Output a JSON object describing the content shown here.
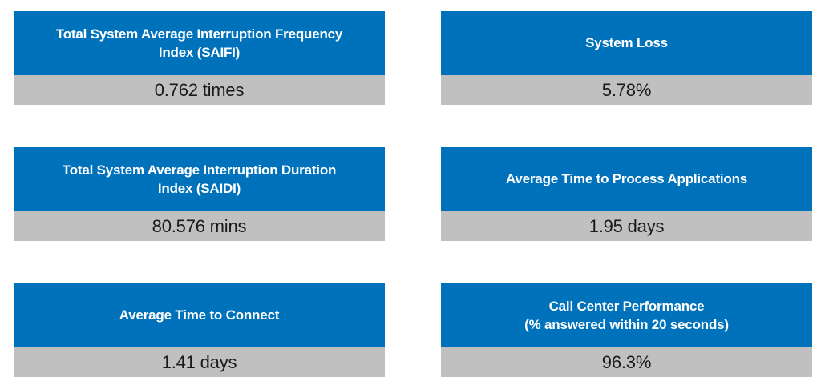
{
  "colors": {
    "header_bg": "#0072BC",
    "header_text": "#FFFFFF",
    "value_bg": "#C0C0C0",
    "value_text": "#1A1A1A",
    "page_bg": "#FFFFFF"
  },
  "cards": [
    {
      "title_lines": [
        "Total System Average Interruption Frequency",
        "Index (SAIFI)"
      ],
      "value": "0.762 times"
    },
    {
      "title_lines": [
        "System Loss"
      ],
      "value": "5.78%"
    },
    {
      "title_lines": [
        "Total System Average Interruption Duration",
        "Index (SAIDI)"
      ],
      "value": "80.576 mins"
    },
    {
      "title_lines": [
        "Average Time to Process Applications"
      ],
      "value": "1.95 days"
    },
    {
      "title_lines": [
        "Average Time to Connect"
      ],
      "value": "1.41 days"
    },
    {
      "title_lines": [
        "Call Center Performance",
        "(% answered within 20 seconds)"
      ],
      "value": "96.3%"
    }
  ],
  "chart_data": {
    "type": "table",
    "layout": "2-column grid of KPI stat cards, blue header with white label, gray bar with value",
    "metrics": [
      {
        "label": "Total System Average Interruption Frequency Index (SAIFI)",
        "value": 0.762,
        "unit": "times",
        "display": "0.762 times"
      },
      {
        "label": "System Loss",
        "value": 5.78,
        "unit": "%",
        "display": "5.78%"
      },
      {
        "label": "Total System Average Interruption Duration Index (SAIDI)",
        "value": 80.576,
        "unit": "mins",
        "display": "80.576 mins"
      },
      {
        "label": "Average Time to Process Applications",
        "value": 1.95,
        "unit": "days",
        "display": "1.95 days"
      },
      {
        "label": "Average Time to Connect",
        "value": 1.41,
        "unit": "days",
        "display": "1.41 days"
      },
      {
        "label": "Call Center Performance (% answered within 20 seconds)",
        "value": 96.3,
        "unit": "%",
        "display": "96.3%"
      }
    ]
  }
}
